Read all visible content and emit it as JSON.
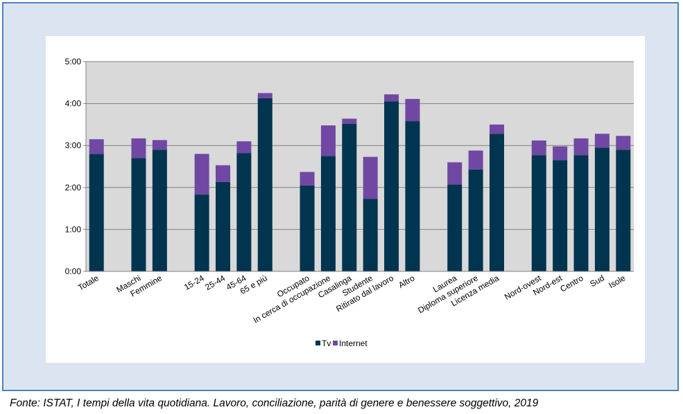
{
  "source_note": "Fonte: ISTAT, I tempi della vita quotidiana. Lavoro, conciliazione, parità di genere e benessere soggettivo, 2019",
  "colors": {
    "tv": "#00344f",
    "internet": "#7048a3",
    "plot_bg": "#d9d9d9",
    "grid": "#808080"
  },
  "chart_data": {
    "type": "bar",
    "stacked": true,
    "y_tick_labels": [
      "0:00",
      "1:00",
      "2:00",
      "3:00",
      "4:00",
      "5:00"
    ],
    "ylim_hours": [
      0,
      5
    ],
    "grid": true,
    "legend_position": "bottom",
    "categories": [
      "Totale",
      "",
      "Maschi",
      "Femmine",
      "",
      "15-24",
      "25-44",
      "45-64",
      "65 e più",
      "",
      "Occupato",
      "In cerca di occupazione",
      "Casalinga",
      "Studente",
      "Ritirato dal lavoro",
      "Altro",
      "",
      "Laurea",
      "Diploma superiore",
      "Licenza media",
      "",
      "Nord-ovest",
      "Nord-est",
      "Centro",
      "Sud",
      "Isole"
    ],
    "series": [
      {
        "name": "Tv",
        "color": "#00344f",
        "values_hours": [
          2.8,
          null,
          2.7,
          2.9,
          null,
          1.83,
          2.13,
          2.82,
          4.13,
          null,
          2.05,
          2.75,
          3.52,
          1.73,
          4.05,
          3.58,
          null,
          2.07,
          2.43,
          3.28,
          null,
          2.77,
          2.65,
          2.77,
          2.95,
          2.9
        ]
      },
      {
        "name": "Internet",
        "color": "#7048a3",
        "values_hours": [
          0.35,
          null,
          0.47,
          0.23,
          null,
          0.97,
          0.4,
          0.28,
          0.12,
          null,
          0.32,
          0.73,
          0.12,
          1.0,
          0.17,
          0.53,
          null,
          0.53,
          0.45,
          0.22,
          null,
          0.35,
          0.33,
          0.4,
          0.33,
          0.33
        ]
      }
    ]
  }
}
